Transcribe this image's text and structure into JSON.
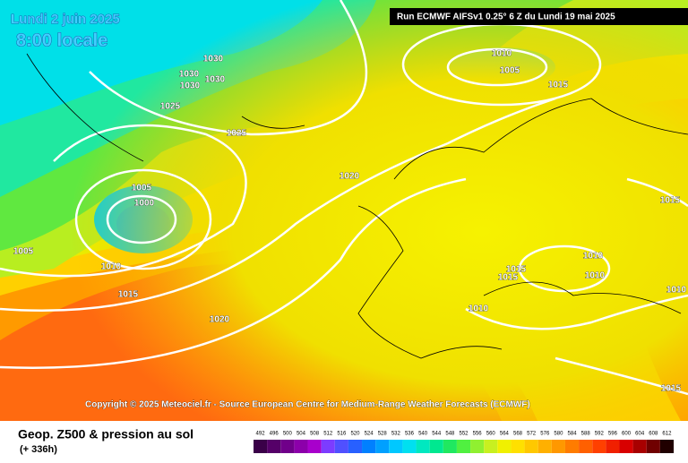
{
  "header": {
    "title": "Lundi 2 juin 2025",
    "subtitle": "8:00 locale",
    "run": "Run ECMWF AIFSv1 0.25° 6 Z du Lundi 19 mai 2025"
  },
  "copyright": "Copyright © 2025 Meteociel.fr - Source European Centre for Medium-Range Weather Forecasts (ECMWF)",
  "footer": {
    "title": "Geop. Z500 & pression au sol",
    "range": "(+ 336h)"
  },
  "isobars": [
    "1030",
    "1030",
    "1030",
    "1030",
    "1025",
    "1025",
    "1010",
    "1005",
    "1015",
    "1020",
    "1005",
    "1000",
    "1005",
    "1010",
    "1015",
    "1020",
    "1015",
    "1015",
    "1010",
    "1010",
    "1010",
    "1015",
    "1010",
    "1015"
  ],
  "scale": {
    "labels": [
      492,
      496,
      500,
      504,
      508,
      512,
      516,
      520,
      524,
      528,
      532,
      536,
      540,
      544,
      548,
      552,
      556,
      560,
      564,
      568,
      572,
      576,
      580,
      584,
      588,
      592,
      596,
      600,
      604,
      608,
      612
    ],
    "colors": [
      "#3a0048",
      "#550068",
      "#70008a",
      "#8c00aa",
      "#a800cc",
      "#7c3cff",
      "#5050ff",
      "#2860ff",
      "#0080ff",
      "#00a0ff",
      "#00c8ff",
      "#00e0f0",
      "#00e8c0",
      "#00e890",
      "#20e860",
      "#50f040",
      "#90f030",
      "#c8f020",
      "#f0f000",
      "#ffe000",
      "#ffc800",
      "#ffb000",
      "#ff9800",
      "#ff7c00",
      "#ff6000",
      "#ff4000",
      "#f02000",
      "#d80000",
      "#a80000",
      "#700000",
      "#200000"
    ]
  }
}
